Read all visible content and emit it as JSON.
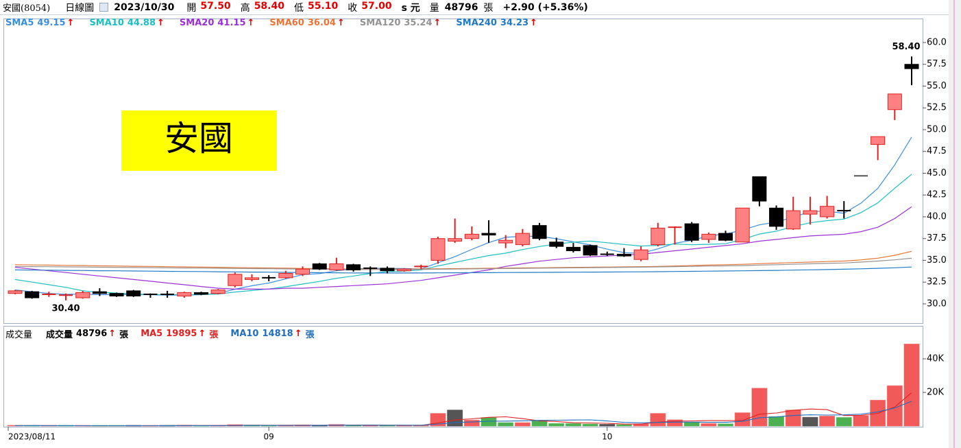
{
  "header": {
    "symbol": "安國(8054)",
    "period": "日線圖",
    "date": "2023/10/30",
    "fields": [
      {
        "label": "開",
        "value": "57.50"
      },
      {
        "label": "高",
        "value": "58.40"
      },
      {
        "label": "低",
        "value": "55.10"
      },
      {
        "label": "收",
        "value": "57.00"
      }
    ],
    "unit": "s 元",
    "volume_label": "量",
    "volume": "48796",
    "volume_unit": "張",
    "change": "+2.90 (+5.36%)"
  },
  "chart_data": [
    {
      "type": "candlestick",
      "annotation": "安國",
      "annotation_color": "#ffff00",
      "up_color": "#ff8080",
      "up_line_color": "#e02020",
      "down_color": "#000000",
      "flat_color": "#555555",
      "trend_color": "#e00000",
      "high_label": "58.40",
      "low_label": "30.40",
      "ylim": [
        27.87,
        62.52
      ],
      "yticks": [
        {
          "value": 30,
          "label": "30.0"
        },
        {
          "value": 32.5,
          "label": "32.5"
        },
        {
          "value": 35,
          "label": "35.0"
        },
        {
          "value": 37.5,
          "label": "37.5"
        },
        {
          "value": 40,
          "label": "40.0"
        },
        {
          "value": 42.5,
          "label": "42.5"
        },
        {
          "value": 45,
          "label": "45.0"
        },
        {
          "value": 47.5,
          "label": "47.5"
        },
        {
          "value": 50,
          "label": "50.0"
        },
        {
          "value": 52.5,
          "label": "52.5"
        },
        {
          "value": 55,
          "label": "55.0"
        },
        {
          "value": 57.5,
          "label": "57.5"
        },
        {
          "value": 60,
          "label": "60.0"
        }
      ],
      "open": [
        31.2,
        31.4,
        31.0,
        30.9,
        30.7,
        31.4,
        31.2,
        31.5,
        31.1,
        31.1,
        30.9,
        31.3,
        31.2,
        32.1,
        32.8,
        33.0,
        33.0,
        33.4,
        34.6,
        33.9,
        34.5,
        34.1,
        34.1,
        33.8,
        34.2,
        35.0,
        37.2,
        37.5,
        38.1,
        37.0,
        36.8,
        39.0,
        37.1,
        36.5,
        36.7,
        35.7,
        35.7,
        35.1,
        36.8,
        38.7,
        39.2,
        37.4,
        38.1,
        37.1,
        44.6,
        41.0,
        38.6,
        40.3,
        40.0,
        40.7,
        44.7,
        48.3,
        52.3,
        57.5
      ],
      "high": [
        31.6,
        31.5,
        31.4,
        31.2,
        31.5,
        31.8,
        31.3,
        31.6,
        31.2,
        31.5,
        31.4,
        31.4,
        31.7,
        33.6,
        33.4,
        33.3,
        33.8,
        34.3,
        34.7,
        35.3,
        34.6,
        34.3,
        34.3,
        34.1,
        34.5,
        37.7,
        39.8,
        38.9,
        39.6,
        37.9,
        38.6,
        39.3,
        37.6,
        37.0,
        36.8,
        36.0,
        36.4,
        36.6,
        39.3,
        38.9,
        39.4,
        38.2,
        38.4,
        41.0,
        44.6,
        41.3,
        42.3,
        42.3,
        42.4,
        41.8,
        44.7,
        49.2,
        54.1,
        58.4
      ],
      "low": [
        31.1,
        30.6,
        30.8,
        30.4,
        30.6,
        30.9,
        30.8,
        30.8,
        30.7,
        30.7,
        30.7,
        31.0,
        31.1,
        31.9,
        32.6,
        32.6,
        32.9,
        33.2,
        33.9,
        33.8,
        33.7,
        33.2,
        33.5,
        33.7,
        34.0,
        34.6,
        37.0,
        37.3,
        37.0,
        36.4,
        36.6,
        37.3,
        36.4,
        35.9,
        35.5,
        35.5,
        35.4,
        34.9,
        36.6,
        36.8,
        37.1,
        37.0,
        37.2,
        37.1,
        41.2,
        38.5,
        38.5,
        39.1,
        39.8,
        39.8,
        44.7,
        46.5,
        51.1,
        55.1
      ],
      "close": [
        31.5,
        30.7,
        31.1,
        31.0,
        31.3,
        31.2,
        30.9,
        30.9,
        31.0,
        31.0,
        31.3,
        31.1,
        31.6,
        33.4,
        33.0,
        32.9,
        33.5,
        34.0,
        34.0,
        34.6,
        33.9,
        34.0,
        33.8,
        34.0,
        34.3,
        37.5,
        37.5,
        38.0,
        37.9,
        37.3,
        38.1,
        37.5,
        36.6,
        36.1,
        35.6,
        35.6,
        35.5,
        36.2,
        38.7,
        38.8,
        37.3,
        38.0,
        37.3,
        41.0,
        41.8,
        38.9,
        40.7,
        40.7,
        41.2,
        40.6,
        44.7,
        49.2,
        54.1,
        57.0
      ],
      "series": [
        {
          "name": "SMA5",
          "color": "#3a8ee0",
          "legend_label": "49.15",
          "trend": "↑",
          "values": [
            31.6,
            31.4,
            31.2,
            31.1,
            31.12,
            31.06,
            31.1,
            31.06,
            31.06,
            31.0,
            31.02,
            31.06,
            31.2,
            31.68,
            32.08,
            32.4,
            32.88,
            33.36,
            33.48,
            33.8,
            34.0,
            34.1,
            34.06,
            34.06,
            34.0,
            34.72,
            35.42,
            36.26,
            37.04,
            37.64,
            37.76,
            37.76,
            37.48,
            37.12,
            36.78,
            36.28,
            35.88,
            35.8,
            36.32,
            36.96,
            37.3,
            37.8,
            38.02,
            38.48,
            39.08,
            39.4,
            39.94,
            40.6,
            40.64,
            40.4,
            41.56,
            43.26,
            45.96,
            49.15
          ]
        },
        {
          "name": "SMA10",
          "color": "#1cc0c0",
          "legend_label": "44.88",
          "trend": "↑",
          "values": [
            32.8,
            32.5,
            32.2,
            31.9,
            31.5,
            31.33,
            31.25,
            31.13,
            31.08,
            31.06,
            31.04,
            31.08,
            31.13,
            31.37,
            31.54,
            31.71,
            31.97,
            32.28,
            32.58,
            32.94,
            33.2,
            33.49,
            33.71,
            33.77,
            33.9,
            34.36,
            34.76,
            35.16,
            35.55,
            35.82,
            36.24,
            36.59,
            36.87,
            37.08,
            37.21,
            37.02,
            36.82,
            36.64,
            36.72,
            36.87,
            36.79,
            36.84,
            36.91,
            37.4,
            38.02,
            38.35,
            38.87,
            39.31,
            39.56,
            39.74,
            40.48,
            41.6,
            43.28,
            44.88
          ]
        },
        {
          "name": "SMA20",
          "color": "#9b30d8",
          "legend_label": "41.15",
          "trend": "↑",
          "values": [
            34.2,
            34.0,
            33.8,
            33.6,
            33.4,
            33.2,
            33.0,
            32.8,
            32.6,
            32.4,
            32.2,
            32.0,
            31.8,
            31.7,
            31.7,
            31.7,
            31.8,
            31.8,
            31.9,
            32.0,
            32.1,
            32.2,
            32.3,
            32.5,
            32.7,
            33.0,
            33.3,
            33.6,
            33.9,
            34.3,
            34.6,
            34.9,
            35.1,
            35.3,
            35.4,
            35.5,
            35.6,
            35.7,
            35.9,
            36.1,
            36.3,
            36.5,
            36.7,
            36.9,
            37.2,
            37.4,
            37.6,
            37.8,
            37.9,
            38.0,
            38.3,
            38.8,
            39.8,
            41.15
          ]
        },
        {
          "name": "SMA60",
          "color": "#ea7435",
          "legend_label": "36.04",
          "trend": "↑",
          "values": [
            34.5,
            34.47,
            34.45,
            34.42,
            34.4,
            34.37,
            34.35,
            34.32,
            34.3,
            34.27,
            34.25,
            34.22,
            34.2,
            34.17,
            34.15,
            34.12,
            34.1,
            34.07,
            34.05,
            34.02,
            34.0,
            34.0,
            34.0,
            34.0,
            34.01,
            34.03,
            34.05,
            34.07,
            34.09,
            34.11,
            34.13,
            34.15,
            34.17,
            34.19,
            34.21,
            34.23,
            34.25,
            34.27,
            34.3,
            34.35,
            34.4,
            34.45,
            34.5,
            34.55,
            34.62,
            34.68,
            34.74,
            34.8,
            34.86,
            34.92,
            35.05,
            35.25,
            35.58,
            36.04
          ]
        },
        {
          "name": "SMA120",
          "color": "#939393",
          "legend_label": "35.24",
          "trend": "↑",
          "values": [
            34.3,
            34.28,
            34.27,
            34.25,
            34.23,
            34.21,
            34.2,
            34.18,
            34.16,
            34.14,
            34.12,
            34.11,
            34.09,
            34.07,
            34.05,
            34.04,
            34.02,
            34.0,
            33.98,
            33.97,
            33.95,
            33.95,
            33.95,
            33.95,
            33.96,
            33.98,
            34.0,
            34.02,
            34.04,
            34.06,
            34.08,
            34.1,
            34.12,
            34.14,
            34.16,
            34.18,
            34.2,
            34.22,
            34.25,
            34.28,
            34.31,
            34.34,
            34.37,
            34.4,
            34.45,
            34.5,
            34.55,
            34.6,
            34.65,
            34.7,
            34.8,
            34.92,
            35.06,
            35.24
          ]
        },
        {
          "name": "SMA240",
          "color": "#1f7ac8",
          "legend_label": "34.23",
          "trend": "↑",
          "values": [
            33.9,
            33.88,
            33.87,
            33.85,
            33.83,
            33.81,
            33.8,
            33.78,
            33.76,
            33.74,
            33.72,
            33.71,
            33.69,
            33.67,
            33.65,
            33.64,
            33.62,
            33.6,
            33.58,
            33.57,
            33.55,
            33.55,
            33.55,
            33.55,
            33.55,
            33.56,
            33.57,
            33.58,
            33.59,
            33.6,
            33.61,
            33.62,
            33.63,
            33.64,
            33.65,
            33.66,
            33.67,
            33.68,
            33.7,
            33.72,
            33.74,
            33.76,
            33.78,
            33.8,
            33.82,
            33.85,
            33.88,
            33.91,
            33.94,
            33.98,
            34.03,
            34.08,
            34.15,
            34.23
          ]
        }
      ]
    },
    {
      "type": "bar",
      "title": "成交量",
      "up_color": "#f25a5a",
      "down_color": "#4caf50",
      "flat_color": "#555555",
      "trend_color": "#e00000",
      "ylim": [
        0,
        58800
      ],
      "yticks": [
        {
          "value": 20000,
          "label": "20K"
        },
        {
          "value": 40000,
          "label": "40K"
        }
      ],
      "categories": [
        "2023/08/11",
        null,
        null,
        null,
        null,
        null,
        null,
        null,
        null,
        null,
        null,
        null,
        null,
        null,
        null,
        "09",
        null,
        null,
        null,
        null,
        null,
        null,
        null,
        null,
        null,
        null,
        null,
        null,
        null,
        null,
        null,
        null,
        null,
        null,
        null,
        "10",
        null,
        null,
        null,
        null,
        null,
        null,
        null,
        null,
        null,
        null,
        null,
        null,
        null,
        null,
        null,
        null,
        null,
        null
      ],
      "series": [
        {
          "name": "成交量",
          "type": "bar",
          "color": "#000000",
          "legend_label": "48796",
          "trend": "↑",
          "unit": "張",
          "values": [
            300,
            200,
            200,
            150,
            200,
            150,
            200,
            200,
            150,
            300,
            500,
            300,
            400,
            800,
            500,
            300,
            400,
            600,
            400,
            900,
            500,
            400,
            300,
            400,
            500,
            7500,
            9500,
            3500,
            5000,
            2000,
            2000,
            3000,
            1500,
            1500,
            1200,
            1000,
            800,
            1200,
            7500,
            3700,
            2200,
            1500,
            1300,
            7900,
            22504,
            5600,
            9500,
            5200,
            5900,
            5080,
            6200,
            15400,
            24000,
            48796
          ]
        },
        {
          "name": "MA5",
          "type": "line",
          "color": "#e32020",
          "legend_label": "19895",
          "trend": "↑",
          "unit": "張",
          "values": [
            250,
            240,
            230,
            220,
            210,
            180,
            180,
            180,
            180,
            200,
            270,
            290,
            330,
            460,
            500,
            460,
            480,
            520,
            440,
            520,
            560,
            560,
            500,
            500,
            420,
            1820,
            3640,
            4280,
            5200,
            5500,
            4400,
            3100,
            2700,
            2000,
            1840,
            1640,
            1200,
            1140,
            2340,
            2840,
            3080,
            3220,
            3240,
            3320,
            7081,
            7761,
            9361,
            10141,
            9741,
            6256,
            6376,
            7556,
            11316,
            19895
          ]
        },
        {
          "name": "MA10",
          "type": "line",
          "color": "#1f6fc0",
          "legend_label": "14818",
          "trend": "↑",
          "unit": "張",
          "values": [
            260,
            250,
            240,
            230,
            220,
            215,
            210,
            205,
            200,
            205,
            225,
            235,
            255,
            320,
            350,
            365,
            385,
            425,
            450,
            510,
            510,
            520,
            510,
            470,
            470,
            1190,
            2100,
            2390,
            2850,
            2960,
            3110,
            3370,
            3490,
            3600,
            3670,
            3020,
            2150,
            1920,
            2170,
            2340,
            2360,
            2210,
            2190,
            2830,
            4961,
            5421,
            6291,
            6691,
            6531,
            6669,
            7069,
            8459,
            10729,
            14818
          ]
        }
      ]
    }
  ]
}
